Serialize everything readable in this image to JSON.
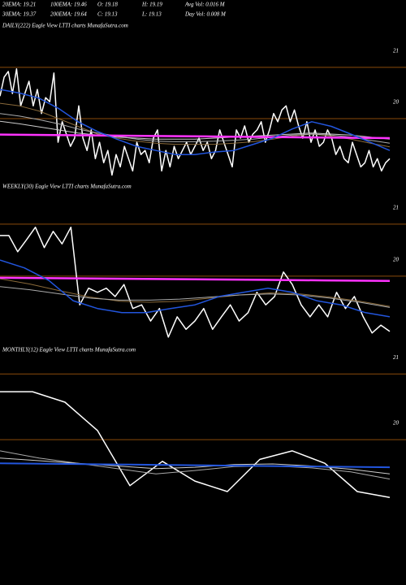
{
  "header": {
    "rows": [
      [
        "20EMA: 19.21",
        "100EMA: 19.46",
        "O: 19.18",
        "H: 19.19",
        "Avg Vol: 0.016  M"
      ],
      [
        "30EMA: 19.37",
        "200EMA: 19.64",
        "C: 19.13",
        "L: 19.13",
        "Day Vol: 0.008  M"
      ]
    ]
  },
  "chart_data": [
    {
      "type": "line",
      "title": "DAILY(222) Eagle  View  LTTI charts MunafaSutra.com",
      "ylim": [
        18.86,
        21.68
      ],
      "yticks": [
        21,
        20
      ],
      "grid": true,
      "grid_color": "#8a4a0a",
      "series": [
        {
          "color": "#ffffff",
          "width": 1.5,
          "values": [
            20.44,
            20.81,
            20.92,
            20.49,
            20.97,
            20.25,
            20.49,
            20.73,
            20.25,
            20.57,
            20.1,
            20.41,
            20.33,
            20.89,
            19.54,
            19.94,
            19.7,
            19.46,
            19.62,
            20.25,
            19.62,
            19.38,
            19.78,
            19.22,
            19.54,
            19.14,
            19.38,
            18.9,
            19.3,
            19.06,
            19.46,
            19.22,
            18.98,
            19.54,
            19.3,
            19.38,
            19.14,
            19.62,
            19.78,
            18.98,
            19.38,
            19.06,
            19.46,
            19.22,
            19.38,
            19.54,
            19.3,
            19.46,
            19.62,
            19.38,
            19.54,
            19.22,
            19.38,
            19.78,
            19.54,
            19.3,
            19.06,
            19.78,
            19.62,
            19.86,
            19.54,
            19.7,
            19.78,
            19.94,
            19.54,
            19.78,
            20.1,
            19.94,
            20.17,
            20.25,
            19.94,
            20.17,
            19.86,
            19.62,
            19.94,
            19.54,
            19.78,
            19.46,
            19.54,
            19.78,
            19.62,
            19.3,
            19.46,
            19.22,
            19.14,
            19.54,
            19.3,
            19.06,
            19.14,
            19.38,
            19.06,
            19.22,
            18.98,
            19.14,
            19.22
          ]
        },
        {
          "color": "#8a6a3a",
          "width": 1,
          "values": [
            20.3,
            20.25,
            20.15,
            20.0,
            19.85,
            19.7,
            19.62,
            19.56,
            19.52,
            19.5,
            19.5,
            19.5,
            19.52,
            19.55,
            19.6,
            19.66,
            19.7,
            19.66,
            19.6,
            19.52,
            19.45
          ]
        },
        {
          "color": "#aaaaaa",
          "width": 1,
          "values": [
            20.1,
            20.05,
            19.98,
            19.9,
            19.8,
            19.72,
            19.66,
            19.6,
            19.56,
            19.55,
            19.55,
            19.56,
            19.58,
            19.6,
            19.64,
            19.68,
            19.7,
            19.68,
            19.64,
            19.58,
            19.52
          ]
        },
        {
          "color": "#cccccc",
          "width": 1,
          "values": [
            19.95,
            19.9,
            19.84,
            19.78,
            19.72,
            19.68,
            19.64,
            19.62,
            19.6,
            19.6,
            19.6,
            19.62,
            19.64,
            19.66,
            19.68,
            19.7,
            19.72,
            19.7,
            19.68,
            19.64,
            19.6
          ]
        },
        {
          "color": "#ff33ff",
          "width": 2.5,
          "values": [
            19.69,
            19.68,
            19.67,
            19.66,
            19.65,
            19.64,
            19.63,
            19.62
          ]
        },
        {
          "color": "#2255dd",
          "width": 1.5,
          "values": [
            20.57,
            20.5,
            20.4,
            20.2,
            19.94,
            19.75,
            19.6,
            19.46,
            19.38,
            19.3,
            19.3,
            19.35,
            19.38,
            19.5,
            19.62,
            19.8,
            19.94,
            19.85,
            19.7,
            19.54,
            19.38
          ]
        }
      ]
    },
    {
      "type": "line",
      "title": "WEEKLY(30) Eagle  View  LTTI charts MunafaSutra.com",
      "ylim": [
        18.72,
        21.59
      ],
      "yticks": [
        21,
        20
      ],
      "grid": true,
      "grid_color": "#8a4a0a",
      "series": [
        {
          "color": "#ffffff",
          "width": 1.5,
          "values": [
            20.78,
            20.78,
            20.47,
            20.7,
            20.94,
            20.55,
            20.86,
            20.62,
            20.94,
            19.45,
            19.77,
            19.69,
            19.77,
            19.61,
            19.84,
            19.38,
            19.45,
            19.14,
            19.38,
            18.83,
            19.22,
            18.98,
            19.14,
            19.38,
            18.98,
            19.22,
            19.45,
            19.14,
            19.3,
            19.69,
            19.45,
            19.61,
            20.08,
            19.84,
            19.45,
            19.22,
            19.45,
            19.22,
            19.69,
            19.38,
            19.61,
            19.22,
            18.91,
            19.06,
            18.94
          ]
        },
        {
          "color": "#8a6a3a",
          "width": 1,
          "values": [
            19.95,
            19.85,
            19.72,
            19.6,
            19.52,
            19.5,
            19.52,
            19.58,
            19.64,
            19.68,
            19.66,
            19.6,
            19.52,
            19.42
          ]
        },
        {
          "color": "#aaaaaa",
          "width": 1,
          "values": [
            19.8,
            19.74,
            19.66,
            19.58,
            19.54,
            19.54,
            19.56,
            19.6,
            19.64,
            19.66,
            19.64,
            19.58,
            19.5,
            19.4
          ]
        },
        {
          "color": "#ff33ff",
          "width": 2.5,
          "values": [
            19.97,
            19.96,
            19.95,
            19.94,
            19.93,
            19.92,
            19.91
          ]
        },
        {
          "color": "#2255dd",
          "width": 1.5,
          "values": [
            20.31,
            20.16,
            19.92,
            19.53,
            19.38,
            19.3,
            19.3,
            19.38,
            19.45,
            19.61,
            19.69,
            19.77,
            19.69,
            19.53,
            19.45,
            19.3,
            19.22
          ]
        }
      ]
    },
    {
      "type": "line",
      "title": "MONTHLY(12) Eagle  View  LTTI charts MunafaSutra.com",
      "ylim": [
        17.85,
        21.25
      ],
      "yticks": [
        21,
        20
      ],
      "grid": true,
      "grid_color": "#8a4a0a",
      "series": [
        {
          "color": "#ffffff",
          "width": 1.5,
          "values": [
            20.73,
            20.73,
            20.57,
            20.14,
            19.3,
            19.67,
            19.37,
            19.21,
            19.7,
            19.83,
            19.64,
            19.21,
            19.12
          ]
        },
        {
          "color": "#aaaaaa",
          "width": 1,
          "values": [
            19.83,
            19.72,
            19.64,
            19.56,
            19.48,
            19.53,
            19.59,
            19.6,
            19.57,
            19.51,
            19.4
          ]
        },
        {
          "color": "#cccccc",
          "width": 1,
          "values": [
            19.72,
            19.68,
            19.64,
            19.6,
            19.56,
            19.58,
            19.62,
            19.63,
            19.6,
            19.55,
            19.48
          ]
        },
        {
          "color": "#2255dd",
          "width": 2,
          "values": [
            19.64,
            19.63,
            19.62,
            19.61,
            19.6,
            19.59,
            19.58
          ]
        }
      ]
    }
  ]
}
